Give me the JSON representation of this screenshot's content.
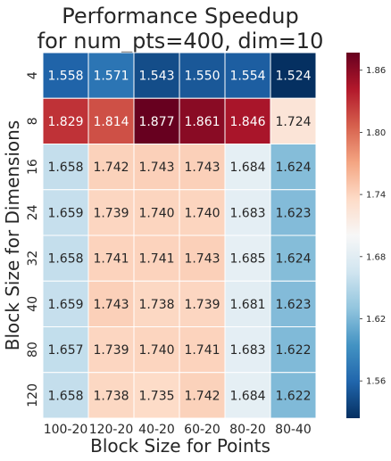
{
  "chart_data": {
    "type": "heatmap",
    "title_lines": [
      "Performance Speedup",
      "for num_pts=400, dim=10"
    ],
    "xlabel": "Block Size for Points",
    "ylabel": "Block Size for Dimensions",
    "x_categories": [
      "100-20",
      "120-20",
      "40-20",
      "60-20",
      "80-20",
      "80-40"
    ],
    "y_categories": [
      "4",
      "8",
      "16",
      "24",
      "32",
      "40",
      "80",
      "120"
    ],
    "values": [
      [
        1.558,
        1.571,
        1.543,
        1.55,
        1.554,
        1.524
      ],
      [
        1.829,
        1.814,
        1.877,
        1.861,
        1.846,
        1.724
      ],
      [
        1.658,
        1.742,
        1.743,
        1.743,
        1.684,
        1.624
      ],
      [
        1.659,
        1.739,
        1.74,
        1.74,
        1.683,
        1.623
      ],
      [
        1.658,
        1.741,
        1.741,
        1.743,
        1.685,
        1.624
      ],
      [
        1.659,
        1.743,
        1.738,
        1.739,
        1.681,
        1.623
      ],
      [
        1.657,
        1.739,
        1.74,
        1.741,
        1.683,
        1.622
      ],
      [
        1.658,
        1.738,
        1.735,
        1.742,
        1.684,
        1.622
      ]
    ],
    "colorbar": {
      "colormap": "RdBu_r",
      "vmin": 1.524,
      "vmax": 1.877,
      "ticks": [
        1.56,
        1.62,
        1.68,
        1.74,
        1.8,
        1.86
      ],
      "tick_labels": [
        "1.56",
        "1.62",
        "1.68",
        "1.74",
        "1.80",
        "1.86"
      ]
    },
    "colors": {
      "dark_blue": "#053061",
      "mid_blue": "#2166ac",
      "light_blue": "#4393c3",
      "pale_blue": "#92c5de",
      "very_pale_blue": "#d1e5f0",
      "white": "#f7f7f7",
      "very_pale_red": "#fddbc7",
      "pale_red": "#f4a582",
      "light_red": "#d6604d",
      "mid_red": "#b2182b",
      "dark_red": "#67001f"
    }
  }
}
